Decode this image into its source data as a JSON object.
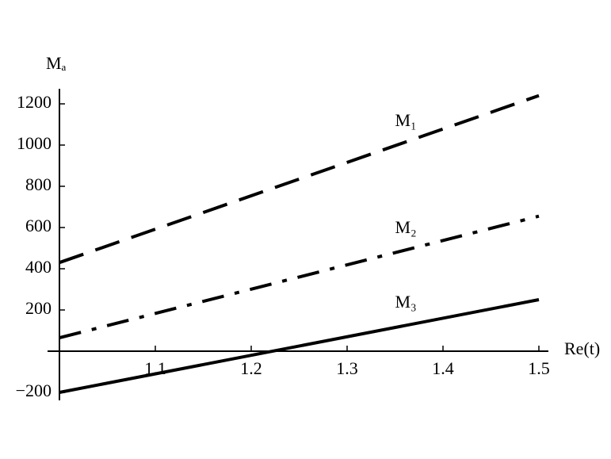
{
  "chart_data": {
    "type": "line",
    "y_label": "Mₐ",
    "x_label": "Re(t)",
    "x": [
      1.0,
      1.5
    ],
    "series": [
      {
        "name": "M₁",
        "color": "#000000",
        "style": "dashed",
        "values": [
          430,
          1240
        ]
      },
      {
        "name": "M₂",
        "color": "#000000",
        "style": "dashdot",
        "values": [
          65,
          655
        ]
      },
      {
        "name": "M₃",
        "color": "#000000",
        "style": "solid",
        "values": [
          -200,
          250
        ]
      }
    ],
    "xlim": [
      1.0,
      1.5
    ],
    "xticks": [
      1.1,
      1.2,
      1.3,
      1.4,
      1.5
    ],
    "ylim": [
      -200,
      1200
    ],
    "yticks": [
      {
        "value": -200,
        "label": "−200"
      },
      200,
      400,
      600,
      800,
      1000,
      1200
    ],
    "grid": false
  }
}
